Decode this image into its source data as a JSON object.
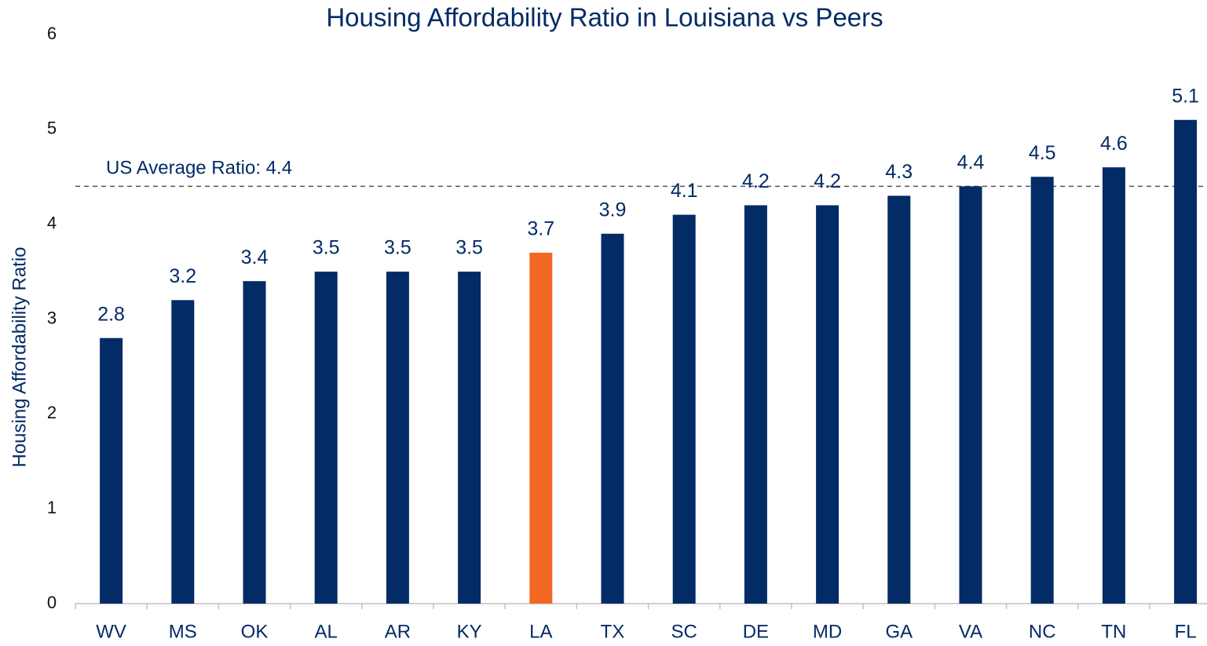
{
  "chart_data": {
    "type": "bar",
    "title": "Housing Affordability Ratio in Louisiana vs Peers",
    "y_label": "Housing Affordability Ratio",
    "categories": [
      "WV",
      "MS",
      "OK",
      "AL",
      "AR",
      "KY",
      "LA",
      "TX",
      "SC",
      "DE",
      "MD",
      "GA",
      "VA",
      "NC",
      "TN",
      "FL"
    ],
    "values": [
      2.8,
      3.2,
      3.4,
      3.5,
      3.5,
      3.5,
      3.7,
      3.9,
      4.1,
      4.2,
      4.2,
      4.3,
      4.4,
      4.5,
      4.6,
      5.1
    ],
    "colors": [
      "#032b66",
      "#032b66",
      "#032b66",
      "#032b66",
      "#032b66",
      "#032b66",
      "#f26722",
      "#032b66",
      "#032b66",
      "#032b66",
      "#032b66",
      "#032b66",
      "#032b66",
      "#032b66",
      "#032b66",
      "#032b66"
    ],
    "ylim": [
      0,
      6
    ],
    "yticks": [
      0,
      1,
      2,
      3,
      4,
      5,
      6
    ],
    "grid": false,
    "reference_line": {
      "value": 4.4,
      "label": "US Average Ratio: 4.4"
    }
  }
}
